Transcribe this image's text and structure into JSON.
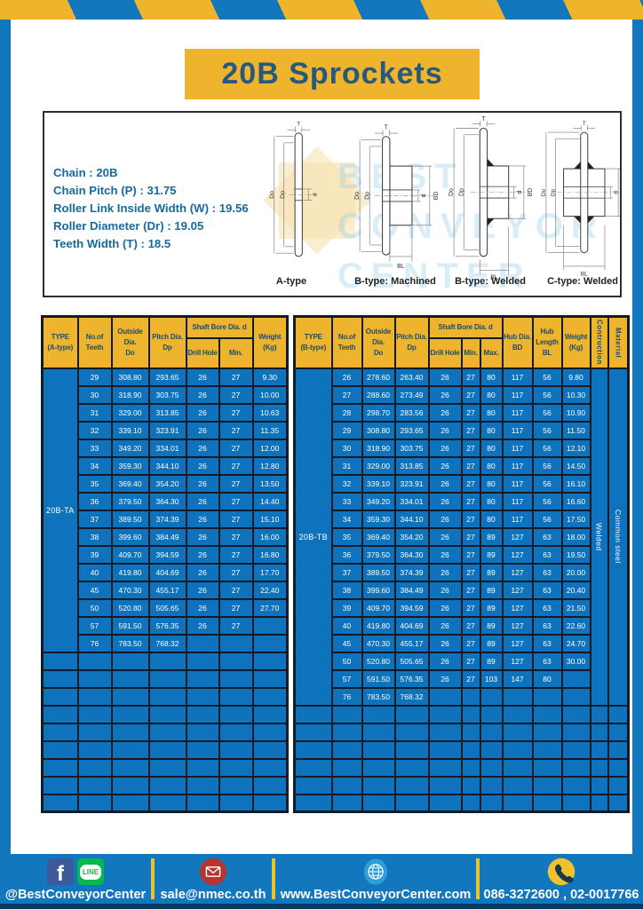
{
  "title": "20B Sprockets",
  "specs": {
    "lines": [
      "Chain  : 20B",
      "Chain Pitch (P)  :  31.75",
      "Roller Link Inside Width (W)  :  19.56",
      "Roller Diameter (Dr)  : 19.05",
      "Teeth Width (T)  :  18.5"
    ]
  },
  "watermark": {
    "lines": [
      "BEST",
      "CONVEYOR",
      "CENTER"
    ]
  },
  "diagrams": [
    {
      "caption": "A-type",
      "dim_t": "T",
      "dim_do": "Do",
      "dim_dp": "Dp",
      "dim_d": "d"
    },
    {
      "caption": "B-type: Machined",
      "dim_t": "T",
      "dim_do": "Do",
      "dim_dp": "Dp",
      "dim_d": "d",
      "dim_bd": "BD",
      "dim_bl": "BL"
    },
    {
      "caption": "B-type: Welded",
      "dim_t": "T",
      "dim_do": "Do",
      "dim_dp": "Dp",
      "dim_d": "d",
      "dim_bd": "BD",
      "dim_bl": "BL"
    },
    {
      "caption": "C-type: Welded",
      "dim_t": "T",
      "dim_do": "Do",
      "dim_dp": "Dp",
      "dim_d": "d",
      "dim_bd": "BD",
      "dim_bl": "BL"
    }
  ],
  "table_a": {
    "type_label": "20B-TA",
    "headers": {
      "type": "TYPE\n(A-type)",
      "teeth": "No.of\nTeeth",
      "outside": "Outside\nDia.\nDo",
      "pitch": "Pitch Dia.\nDp",
      "shaft_bore": "Shaft Bore Dia. d",
      "drill": "Drill Hole",
      "min": "Min.",
      "weight": "Weight\n(Kg)"
    },
    "rows": [
      [
        "29",
        "308.80",
        "293.65",
        "26",
        "27",
        "9.30"
      ],
      [
        "30",
        "318.90",
        "303.75",
        "26",
        "27",
        "10.00"
      ],
      [
        "31",
        "329.00",
        "313.85",
        "26",
        "27",
        "10.63"
      ],
      [
        "32",
        "339.10",
        "323.91",
        "26",
        "27",
        "11.35"
      ],
      [
        "33",
        "349.20",
        "334.01",
        "26",
        "27",
        "12.00"
      ],
      [
        "34",
        "359.30",
        "344.10",
        "26",
        "27",
        "12.80"
      ],
      [
        "35",
        "369.40",
        "354.20",
        "26",
        "27",
        "13.50"
      ],
      [
        "36",
        "379.50",
        "364.30",
        "26",
        "27",
        "14.40"
      ],
      [
        "37",
        "389.50",
        "374.39",
        "26",
        "27",
        "15.10"
      ],
      [
        "38",
        "399.60",
        "384.49",
        "26",
        "27",
        "16.00"
      ],
      [
        "39",
        "409.70",
        "394.59",
        "26",
        "27",
        "16.80"
      ],
      [
        "40",
        "419.80",
        "404.69",
        "26",
        "27",
        "17.70"
      ],
      [
        "45",
        "470.30",
        "455.17",
        "26",
        "27",
        "22.40"
      ],
      [
        "50",
        "520.80",
        "505.65",
        "26",
        "27",
        "27.70"
      ],
      [
        "57",
        "591.50",
        "576.35",
        "26",
        "27",
        ""
      ],
      [
        "76",
        "783.50",
        "768.32",
        "",
        "",
        ""
      ]
    ],
    "empty_rows": 9
  },
  "table_b": {
    "type_label": "20B-TB",
    "construction": "Welded",
    "material": "Common  steel",
    "headers": {
      "type": "TYPE\n(B-type)",
      "teeth": "No.of\nTeeth",
      "outside": "Outside\nDia.\nDo",
      "pitch": "Pitch Dia.\nDp",
      "shaft_bore": "Shaft Bore Dia. d",
      "drill": "Drill Hole",
      "min": "Min.",
      "max": "Max.",
      "hub_dia": "Hub Dia.\nBD",
      "hub_len": "Hub\nLength\nBL",
      "weight": "Weight\n(Kg)",
      "construction": "Contruction",
      "material": "Material"
    },
    "rows": [
      [
        "26",
        "278.60",
        "263.40",
        "26",
        "27",
        "80",
        "117",
        "56",
        "9.80"
      ],
      [
        "27",
        "288.60",
        "273.49",
        "26",
        "27",
        "80",
        "117",
        "56",
        "10.30"
      ],
      [
        "28",
        "298.70",
        "283.56",
        "26",
        "27",
        "80",
        "117",
        "56",
        "10.90"
      ],
      [
        "29",
        "308.80",
        "293.65",
        "26",
        "27",
        "80",
        "117",
        "56",
        "11.50"
      ],
      [
        "30",
        "318.90",
        "303.75",
        "26",
        "27",
        "80",
        "117",
        "56",
        "12.10"
      ],
      [
        "31",
        "329.00",
        "313.85",
        "26",
        "27",
        "80",
        "117",
        "56",
        "14.50"
      ],
      [
        "32",
        "339.10",
        "323.91",
        "26",
        "27",
        "80",
        "117",
        "56",
        "16.10"
      ],
      [
        "33",
        "349.20",
        "334.01",
        "26",
        "27",
        "80",
        "117",
        "56",
        "16.60"
      ],
      [
        "34",
        "359.30",
        "344.10",
        "26",
        "27",
        "80",
        "117",
        "56",
        "17.50"
      ],
      [
        "35",
        "369.40",
        "354.20",
        "26",
        "27",
        "89",
        "127",
        "63",
        "18.00"
      ],
      [
        "36",
        "379.50",
        "364.30",
        "26",
        "27",
        "89",
        "127",
        "63",
        "19.50"
      ],
      [
        "37",
        "389.50",
        "374.39",
        "26",
        "27",
        "89",
        "127",
        "63",
        "20.00"
      ],
      [
        "38",
        "399.60",
        "384.49",
        "26",
        "27",
        "89",
        "127",
        "63",
        "20.40"
      ],
      [
        "39",
        "409.70",
        "394.59",
        "26",
        "27",
        "89",
        "127",
        "63",
        "21.50"
      ],
      [
        "40",
        "419.80",
        "404.69",
        "26",
        "27",
        "89",
        "127",
        "63",
        "22.60"
      ],
      [
        "45",
        "470.30",
        "455.17",
        "26",
        "27",
        "89",
        "127",
        "63",
        "24.70"
      ],
      [
        "50",
        "520.80",
        "505.65",
        "26",
        "27",
        "89",
        "127",
        "63",
        "30.00"
      ],
      [
        "57",
        "591.50",
        "576.35",
        "26",
        "27",
        "103",
        "147",
        "80",
        ""
      ],
      [
        "76",
        "783.50",
        "768.32",
        "",
        "",
        "",
        "",
        "",
        ""
      ]
    ],
    "empty_rows": 6
  },
  "footer": {
    "facebook_letter": "f",
    "line_label": "LINE",
    "social_handle": "@BestConveyorCenter",
    "email": "sale@nmec.co.th",
    "website": "www.BestConveyorCenter.com",
    "phones": "086-3272600 , 02-0017766"
  },
  "colors": {
    "brand_blue": "#1377be",
    "brand_yellow": "#efb42d",
    "table_body_blue": "#0e72bd",
    "grid_dark": "#131c26",
    "title_text": "#26597c",
    "spec_text": "#176a9e"
  }
}
